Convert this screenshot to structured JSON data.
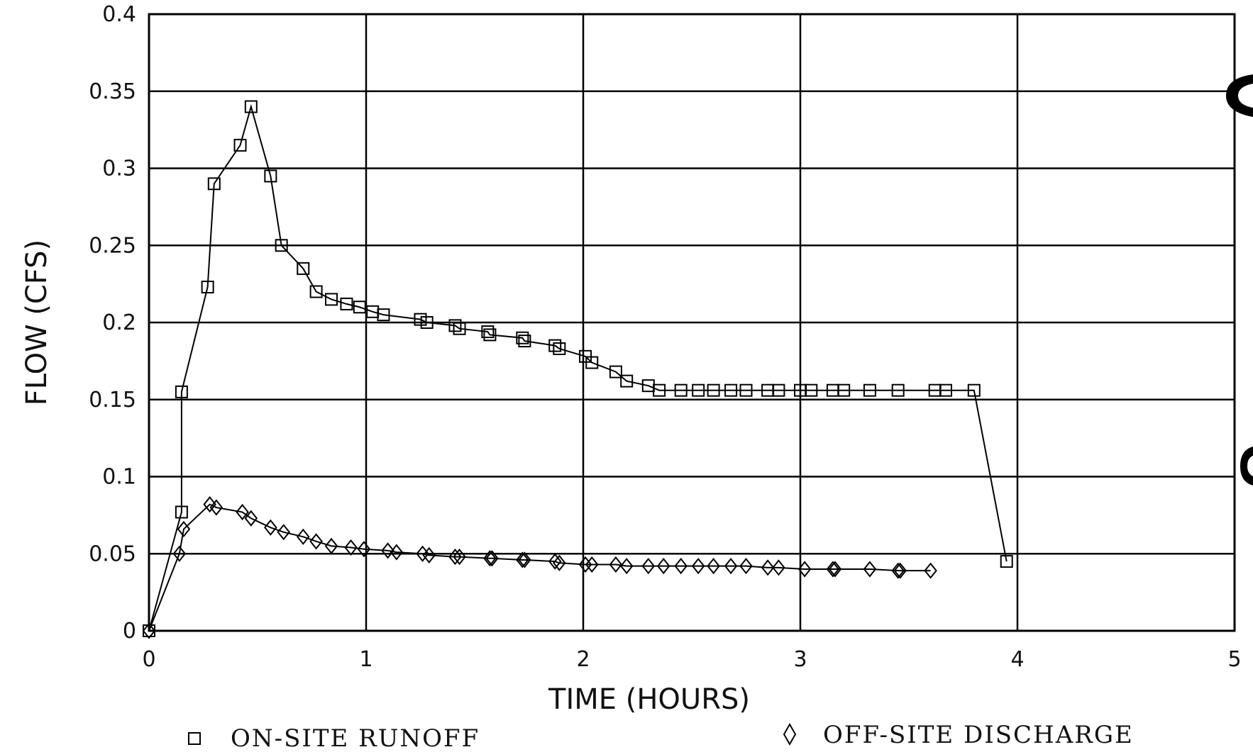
{
  "chart_data": {
    "type": "line",
    "title": "",
    "xlabel": "TIME (HOURS)",
    "ylabel": "FLOW (CFS)",
    "xlim": [
      0,
      5
    ],
    "ylim": [
      0,
      0.4
    ],
    "xticks": [
      "0",
      "1",
      "2",
      "3",
      "4",
      "5"
    ],
    "yticks": [
      "0",
      "0.05",
      "0.1",
      "0.15",
      "0.2",
      "0.25",
      "0.3",
      "0.35",
      "0.4"
    ],
    "grid": true,
    "legend_position": "bottom",
    "series": [
      {
        "name": "ON-SITE RUNOFF",
        "marker": "square",
        "x": [
          0,
          0.15,
          0.15,
          0.27,
          0.3,
          0.42,
          0.47,
          0.56,
          0.61,
          0.71,
          0.77,
          0.84,
          0.91,
          0.97,
          1.03,
          1.08,
          1.25,
          1.28,
          1.41,
          1.43,
          1.56,
          1.57,
          1.72,
          1.73,
          1.87,
          1.89,
          2.01,
          2.04,
          2.15,
          2.2,
          2.3,
          2.35,
          2.45,
          2.53,
          2.6,
          2.68,
          2.75,
          2.85,
          2.9,
          3.0,
          3.05,
          3.15,
          3.2,
          3.32,
          3.45,
          3.62,
          3.67,
          3.8,
          3.95
        ],
        "y": [
          0,
          0.077,
          0.155,
          0.223,
          0.29,
          0.315,
          0.34,
          0.295,
          0.25,
          0.235,
          0.22,
          0.215,
          0.212,
          0.21,
          0.207,
          0.205,
          0.202,
          0.2,
          0.198,
          0.196,
          0.194,
          0.192,
          0.19,
          0.188,
          0.185,
          0.183,
          0.178,
          0.174,
          0.168,
          0.162,
          0.159,
          0.156,
          0.156,
          0.156,
          0.156,
          0.156,
          0.156,
          0.156,
          0.156,
          0.156,
          0.156,
          0.156,
          0.156,
          0.156,
          0.156,
          0.156,
          0.156,
          0.156,
          0.045
        ]
      },
      {
        "name": "OFF-SITE DISCHARGE",
        "marker": "diamond",
        "x": [
          0,
          0.14,
          0.16,
          0.28,
          0.31,
          0.43,
          0.47,
          0.56,
          0.62,
          0.71,
          0.77,
          0.84,
          0.93,
          0.99,
          1.1,
          1.14,
          1.26,
          1.29,
          1.41,
          1.43,
          1.57,
          1.58,
          1.72,
          1.73,
          1.87,
          1.89,
          2.01,
          2.04,
          2.15,
          2.2,
          2.3,
          2.37,
          2.45,
          2.53,
          2.6,
          2.68,
          2.75,
          2.85,
          2.9,
          3.02,
          3.15,
          3.16,
          3.32,
          3.45,
          3.46,
          3.6
        ],
        "y": [
          0,
          0.05,
          0.066,
          0.082,
          0.08,
          0.077,
          0.073,
          0.067,
          0.064,
          0.061,
          0.058,
          0.055,
          0.054,
          0.053,
          0.052,
          0.051,
          0.05,
          0.049,
          0.048,
          0.048,
          0.047,
          0.047,
          0.046,
          0.046,
          0.045,
          0.044,
          0.043,
          0.043,
          0.043,
          0.042,
          0.042,
          0.042,
          0.042,
          0.042,
          0.042,
          0.042,
          0.042,
          0.041,
          0.041,
          0.04,
          0.04,
          0.04,
          0.04,
          0.039,
          0.039,
          0.039
        ]
      }
    ]
  }
}
